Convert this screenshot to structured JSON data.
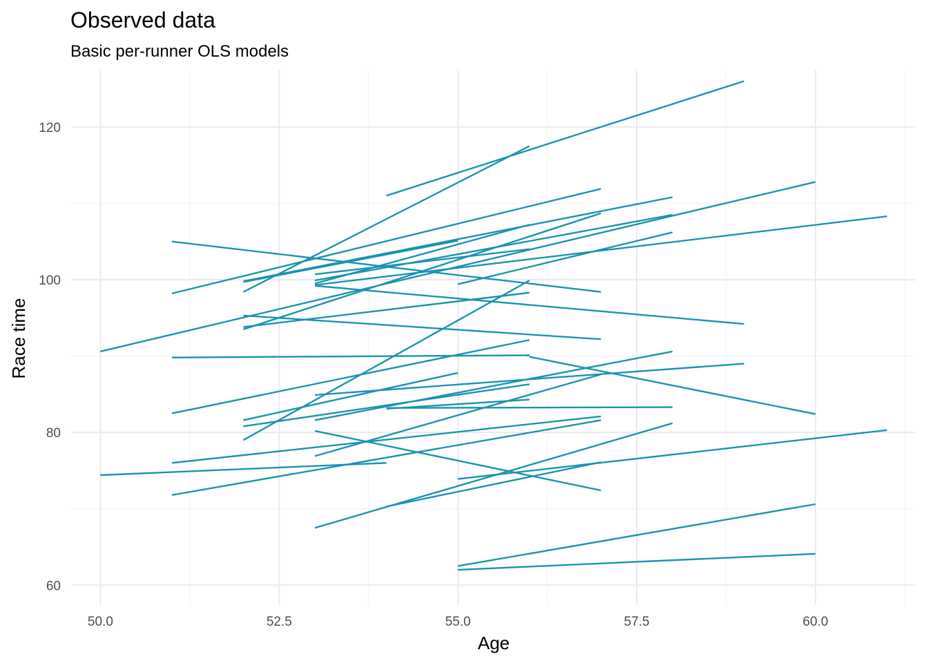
{
  "chart_data": {
    "type": "line",
    "title": "Observed data",
    "subtitle": "Basic per-runner OLS models",
    "xlabel": "Age",
    "ylabel": "Race time",
    "xlim": [
      49.6,
      61.4
    ],
    "ylim": [
      57.4,
      127.4
    ],
    "x_ticks": [
      "50.0",
      "52.5",
      "55.0",
      "57.5",
      "60.0"
    ],
    "y_ticks": [
      "60",
      "80",
      "100",
      "120"
    ],
    "grid": true,
    "legend": "none",
    "line_color": "#1a93b0",
    "series": [
      {
        "x": [
          54,
          59
        ],
        "y": [
          111.0,
          126.0
        ]
      },
      {
        "x": [
          52,
          56
        ],
        "y": [
          98.4,
          117.5
        ]
      },
      {
        "x": [
          51,
          57
        ],
        "y": [
          98.2,
          111.9
        ]
      },
      {
        "x": [
          50,
          60
        ],
        "y": [
          90.6,
          112.8
        ]
      },
      {
        "x": [
          53,
          61
        ],
        "y": [
          99.3,
          108.3
        ]
      },
      {
        "x": [
          52,
          58
        ],
        "y": [
          99.8,
          110.8
        ]
      },
      {
        "x": [
          53,
          56
        ],
        "y": [
          99.5,
          107.2
        ]
      },
      {
        "x": [
          52,
          57
        ],
        "y": [
          93.5,
          108.7
        ]
      },
      {
        "x": [
          52,
          55
        ],
        "y": [
          99.7,
          105.1
        ]
      },
      {
        "x": [
          53,
          58
        ],
        "y": [
          99.9,
          108.5
        ]
      },
      {
        "x": [
          53,
          56
        ],
        "y": [
          100.7,
          104.0
        ]
      },
      {
        "x": [
          55,
          58
        ],
        "y": [
          99.4,
          106.2
        ]
      },
      {
        "x": [
          51,
          57
        ],
        "y": [
          105.0,
          98.4
        ]
      },
      {
        "x": [
          53,
          59
        ],
        "y": [
          99.2,
          94.2
        ]
      },
      {
        "x": [
          52,
          56
        ],
        "y": [
          93.8,
          98.3
        ]
      },
      {
        "x": [
          52,
          57
        ],
        "y": [
          95.3,
          92.2
        ]
      },
      {
        "x": [
          52,
          56
        ],
        "y": [
          79.0,
          99.9
        ]
      },
      {
        "x": [
          51,
          56
        ],
        "y": [
          89.8,
          90.1
        ]
      },
      {
        "x": [
          56,
          60
        ],
        "y": [
          89.9,
          82.4
        ]
      },
      {
        "x": [
          51,
          56
        ],
        "y": [
          82.5,
          92.1
        ]
      },
      {
        "x": [
          52,
          55
        ],
        "y": [
          81.6,
          87.8
        ]
      },
      {
        "x": [
          53,
          59
        ],
        "y": [
          84.9,
          89.0
        ]
      },
      {
        "x": [
          52,
          56
        ],
        "y": [
          80.8,
          86.3
        ]
      },
      {
        "x": [
          53,
          58
        ],
        "y": [
          81.6,
          90.6
        ]
      },
      {
        "x": [
          53,
          57
        ],
        "y": [
          76.9,
          87.6
        ]
      },
      {
        "x": [
          54,
          56
        ],
        "y": [
          83.1,
          84.3
        ]
      },
      {
        "x": [
          54,
          58
        ],
        "y": [
          83.2,
          83.3
        ]
      },
      {
        "x": [
          51,
          57
        ],
        "y": [
          76.0,
          82.1
        ]
      },
      {
        "x": [
          51,
          57
        ],
        "y": [
          71.8,
          81.6
        ]
      },
      {
        "x": [
          50,
          54
        ],
        "y": [
          74.4,
          76.0
        ]
      },
      {
        "x": [
          53,
          57
        ],
        "y": [
          80.2,
          72.4
        ]
      },
      {
        "x": [
          53,
          58
        ],
        "y": [
          67.5,
          81.2
        ]
      },
      {
        "x": [
          54,
          57
        ],
        "y": [
          70.3,
          76.1
        ]
      },
      {
        "x": [
          55,
          61
        ],
        "y": [
          73.9,
          80.3
        ]
      },
      {
        "x": [
          55,
          60
        ],
        "y": [
          62.5,
          70.6
        ]
      },
      {
        "x": [
          55,
          60
        ],
        "y": [
          62.0,
          64.1
        ]
      }
    ]
  }
}
